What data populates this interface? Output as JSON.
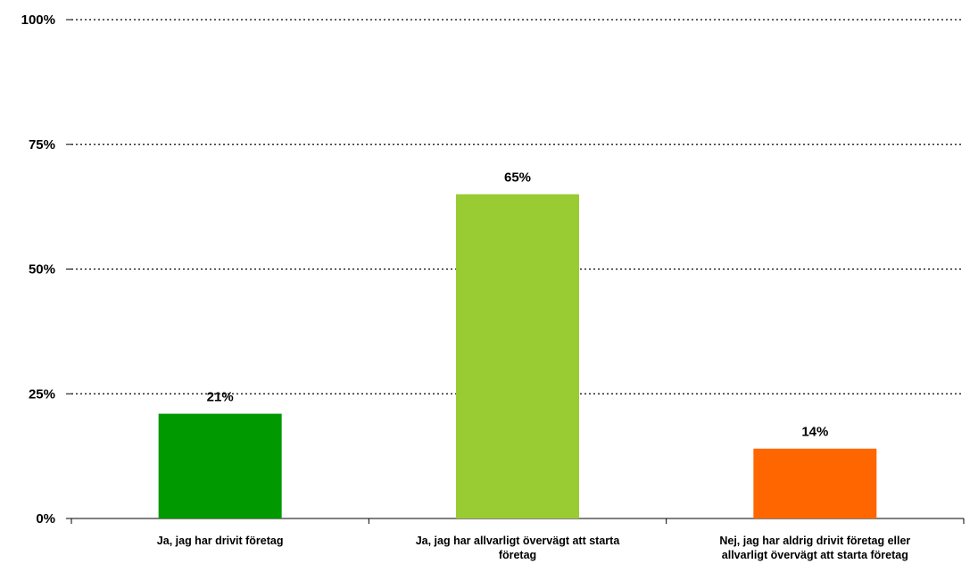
{
  "chart_data": {
    "type": "bar",
    "categories": [
      [
        "Ja, jag har drivit företag"
      ],
      [
        "Ja, jag har allvarligt övervägt att starta",
        "företag"
      ],
      [
        "Nej, jag har aldrig drivit företag eller",
        "allvarligt övervägt att starta företag"
      ]
    ],
    "values": [
      21,
      65,
      14
    ],
    "value_labels": [
      "21%",
      "65%",
      "14%"
    ],
    "colors": [
      "#009900",
      "#99cc33",
      "#ff6600"
    ],
    "title": "",
    "xlabel": "",
    "ylabel": "",
    "ylim": [
      0,
      100
    ],
    "yticks": [
      0,
      25,
      50,
      75,
      100
    ],
    "ytick_labels": [
      "0%",
      "25%",
      "50%",
      "75%",
      "100%"
    ],
    "grid": true,
    "grid_style": "dotted",
    "legend": "none"
  }
}
